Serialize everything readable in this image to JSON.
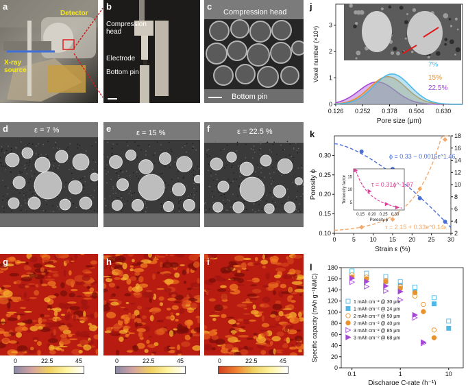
{
  "panels": {
    "a": {
      "letter": "a",
      "detector": "Detector",
      "xray": "X-ray\nsource"
    },
    "b": {
      "letter": "b",
      "compression_head": "Compression\nhead",
      "electrode": "Electrode",
      "bottom_pin": "Bottom pin"
    },
    "c": {
      "letter": "c",
      "compression_head": "Compression head",
      "bottom_pin": "Bottom pin"
    },
    "d": {
      "letter": "d",
      "strain": "ε = 7 %"
    },
    "e": {
      "letter": "e",
      "strain": "ε = 15 %"
    },
    "f": {
      "letter": "f",
      "strain": "ε = 22.5 %"
    },
    "g": {
      "letter": "g"
    },
    "h": {
      "letter": "h"
    },
    "i": {
      "letter": "i"
    },
    "j": {
      "letter": "j"
    },
    "k": {
      "letter": "k"
    },
    "l": {
      "letter": "l"
    }
  },
  "colorbar": {
    "ticks": [
      "0",
      "22.5",
      "45"
    ]
  },
  "colors": {
    "s7": "#4fb8e6",
    "s15": "#e8922e",
    "s225": "#a447d6",
    "porosity": "#4a6fd8",
    "tortuosity": "#f2a86a",
    "inset_tort": "#e0409a"
  },
  "chart_data": [
    {
      "id": "j",
      "type": "area",
      "xlabel": "Pore size (μm)",
      "ylabel": "Voxel number (×10⁸)",
      "xticks": [
        "0.126",
        "0.252",
        "0.378",
        "0.504",
        "0.630"
      ],
      "xlim": [
        0.126,
        0.72
      ],
      "ylim": [
        0,
        3.8
      ],
      "series": [
        {
          "name": "7%",
          "color": "#4fb8e6",
          "mu": 0.39,
          "sigma": 0.085,
          "peak": 1.15
        },
        {
          "name": "15%",
          "color": "#e8922e",
          "mu": 0.37,
          "sigma": 0.085,
          "peak": 1.05
        },
        {
          "name": "22.5%",
          "color": "#a447d6",
          "mu": 0.32,
          "sigma": 0.085,
          "peak": 0.85
        }
      ]
    },
    {
      "id": "k",
      "type": "scatter",
      "xlabel": "Strain ε (%)",
      "ylabel": "Porosity ϕ",
      "y2label": "Tortuosity factor",
      "xticks": [
        "0",
        "5",
        "10",
        "15",
        "20",
        "25",
        "30"
      ],
      "yticks": [
        "0.10",
        "0.15",
        "0.20",
        "0.25",
        "0.30"
      ],
      "y2ticks": [
        "2",
        "4",
        "6",
        "8",
        "10",
        "12",
        "14",
        "16",
        "18"
      ],
      "xlim": [
        0,
        30
      ],
      "ylim": [
        0.1,
        0.35
      ],
      "y2lim": [
        2,
        18
      ],
      "porosity_fit": "ϕ = 0.33 − 0.0015ε^1.46",
      "tortuosity_fit": "τ = 2.15 + 0.33e^0.14ε",
      "porosity_points": [
        [
          7,
          0.31
        ],
        [
          15,
          0.265
        ],
        [
          22,
          0.19
        ],
        [
          28.5,
          0.13
        ]
      ],
      "tortuosity_points": [
        [
          7,
          3.0
        ],
        [
          15,
          4.3
        ],
        [
          22,
          9.3
        ],
        [
          28.5,
          17.4
        ]
      ],
      "inset": {
        "fit": "τ = 0.31ϕ^-1.97",
        "xlabel": "Porosity ϕ",
        "ylabel": "Tortuosity factor",
        "xticks": [
          "0.15",
          "0.20",
          "0.25",
          "0.30"
        ],
        "yticks": [
          "5",
          "10",
          "15"
        ],
        "xlim": [
          0.12,
          0.34
        ],
        "ylim": [
          2,
          18
        ],
        "points": [
          [
            0.31,
            3.0
          ],
          [
            0.265,
            4.3
          ],
          [
            0.19,
            9.3
          ],
          [
            0.13,
            17.4
          ]
        ]
      }
    },
    {
      "id": "l",
      "type": "scatter",
      "xlabel": "Discharge C-rate (h⁻¹)",
      "ylabel": "Specific capacity (mAh g⁻¹NMC)",
      "xticks": [
        "0.1",
        "1",
        "10"
      ],
      "yticks": [
        "0",
        "20",
        "40",
        "60",
        "80",
        "100",
        "120",
        "140",
        "160",
        "180"
      ],
      "xlim": [
        0.06,
        20
      ],
      "ylim": [
        0,
        180
      ],
      "series": [
        {
          "name": "1 mAh cm⁻² @ 30 μm",
          "marker": "square-open",
          "color": "#4fb8e6",
          "x": [
            0.1,
            0.2,
            0.5,
            1,
            2,
            5,
            10
          ],
          "y": [
            174,
            170,
            164,
            155,
            145,
            126,
            84
          ]
        },
        {
          "name": "1 mAh cm⁻² @ 24 μm",
          "marker": "square",
          "color": "#4fb8e6",
          "x": [
            0.1,
            0.2,
            0.5,
            1,
            2,
            5,
            10
          ],
          "y": [
            166,
            162,
            155,
            148,
            136,
            115,
            71
          ]
        },
        {
          "name": "2 mAh cm⁻² @ 50 μm",
          "marker": "circle-open",
          "color": "#e8922e",
          "x": [
            0.1,
            0.2,
            0.5,
            1,
            2,
            3,
            5
          ],
          "y": [
            167,
            163,
            157,
            146,
            129,
            114,
            68
          ]
        },
        {
          "name": "2 mAh cm⁻² @ 40 μm",
          "marker": "circle",
          "color": "#e8922e",
          "x": [
            0.1,
            0.2,
            0.5,
            1,
            2,
            3,
            5
          ],
          "y": [
            163,
            160,
            155,
            143,
            135,
            101,
            54
          ]
        },
        {
          "name": "3 mAh cm⁻² @ 85 μm",
          "marker": "triangle-open",
          "color": "#a447d6",
          "x": [
            0.1,
            0.2,
            0.5,
            1,
            2,
            3
          ],
          "y": [
            154,
            146,
            138,
            122,
            90,
            44
          ]
        },
        {
          "name": "3 mAh cm⁻² @ 68 μm",
          "marker": "triangle",
          "color": "#a447d6",
          "x": [
            0.1,
            0.2,
            0.5,
            1,
            2,
            3
          ],
          "y": [
            161,
            155,
            147,
            137,
            95,
            46
          ]
        }
      ]
    }
  ]
}
